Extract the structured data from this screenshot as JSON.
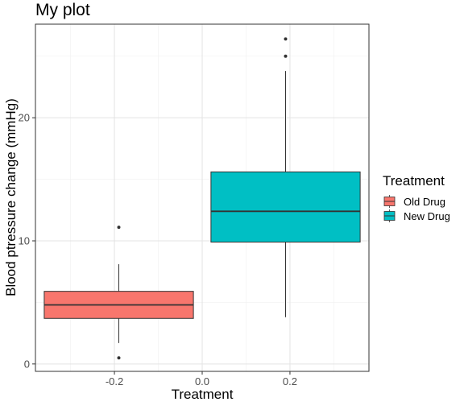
{
  "chart_data": {
    "type": "boxplot",
    "title": "My plot",
    "xlabel": "Treatment",
    "ylabel": "Blood ptressure change (mmHg)",
    "xlim": [
      -0.38,
      0.38
    ],
    "ylim": [
      -0.6,
      27.6
    ],
    "x_ticks": [
      -0.2,
      0.0,
      0.2
    ],
    "x_tick_labels": [
      "-0.2",
      "0.0",
      "0.2"
    ],
    "y_ticks": [
      0,
      10,
      20
    ],
    "y_tick_labels": [
      "0",
      "10",
      "20"
    ],
    "grid": true,
    "legend": {
      "title": "Treatment",
      "position": "right",
      "entries": [
        "Old Drug",
        "New Drug"
      ]
    },
    "series": [
      {
        "name": "Old Drug",
        "color": "#F8766D",
        "x_center": -0.19,
        "box_width": 0.34,
        "whisker_low": 1.7,
        "q1": 3.7,
        "median": 4.8,
        "q3": 5.9,
        "whisker_high": 8.1,
        "outliers": [
          11.1,
          0.5
        ]
      },
      {
        "name": "New Drug",
        "color": "#00BFC4",
        "x_center": 0.19,
        "box_width": 0.34,
        "whisker_low": 3.8,
        "q1": 9.9,
        "median": 12.4,
        "q3": 15.6,
        "whisker_high": 23.8,
        "outliers": [
          26.4,
          25.0
        ]
      }
    ]
  }
}
